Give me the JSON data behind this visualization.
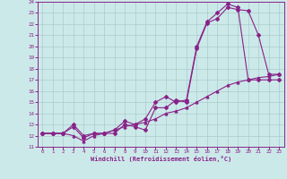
{
  "xlabel": "Windchill (Refroidissement éolien,°C)",
  "ylabel": "",
  "xlim": [
    -0.5,
    23.5
  ],
  "ylim": [
    11,
    24
  ],
  "xticks": [
    0,
    1,
    2,
    3,
    4,
    5,
    6,
    7,
    8,
    9,
    10,
    11,
    12,
    13,
    14,
    15,
    16,
    17,
    18,
    19,
    20,
    21,
    22,
    23
  ],
  "yticks": [
    11,
    12,
    13,
    14,
    15,
    16,
    17,
    18,
    19,
    20,
    21,
    22,
    23,
    24
  ],
  "bg_color": "#cce9e9",
  "line_color": "#882288",
  "grid_color": "#aacccc",
  "line1_x": [
    0,
    1,
    2,
    3,
    4,
    5,
    6,
    7,
    8,
    9,
    10,
    11,
    12,
    13,
    14,
    15,
    16,
    17,
    18,
    19,
    20,
    21,
    22,
    23
  ],
  "line1_y": [
    12.2,
    12.2,
    12.2,
    13.0,
    12.0,
    12.2,
    12.2,
    12.5,
    13.3,
    13.0,
    13.5,
    15.0,
    15.5,
    15.0,
    15.2,
    20.0,
    22.2,
    23.0,
    23.8,
    23.5,
    17.0,
    17.0,
    17.0,
    17.0
  ],
  "line2_x": [
    0,
    1,
    2,
    3,
    4,
    5,
    6,
    7,
    8,
    9,
    10,
    11,
    12,
    13,
    14,
    15,
    16,
    17,
    18,
    19,
    20,
    21,
    22,
    23
  ],
  "line2_y": [
    12.2,
    12.2,
    12.2,
    12.8,
    11.8,
    12.2,
    12.2,
    12.2,
    13.0,
    12.8,
    12.5,
    14.5,
    14.5,
    15.2,
    15.0,
    19.8,
    22.1,
    22.5,
    23.5,
    23.3,
    23.2,
    21.0,
    17.5,
    17.5
  ],
  "line3_x": [
    0,
    1,
    2,
    3,
    4,
    5,
    6,
    7,
    8,
    9,
    10,
    11,
    12,
    13,
    14,
    15,
    16,
    17,
    18,
    19,
    20,
    21,
    22,
    23
  ],
  "line3_y": [
    12.2,
    12.2,
    12.2,
    12.0,
    11.5,
    12.0,
    12.2,
    12.5,
    12.8,
    13.0,
    13.2,
    13.5,
    14.0,
    14.2,
    14.5,
    15.0,
    15.5,
    16.0,
    16.5,
    16.8,
    17.0,
    17.2,
    17.3,
    17.5
  ]
}
